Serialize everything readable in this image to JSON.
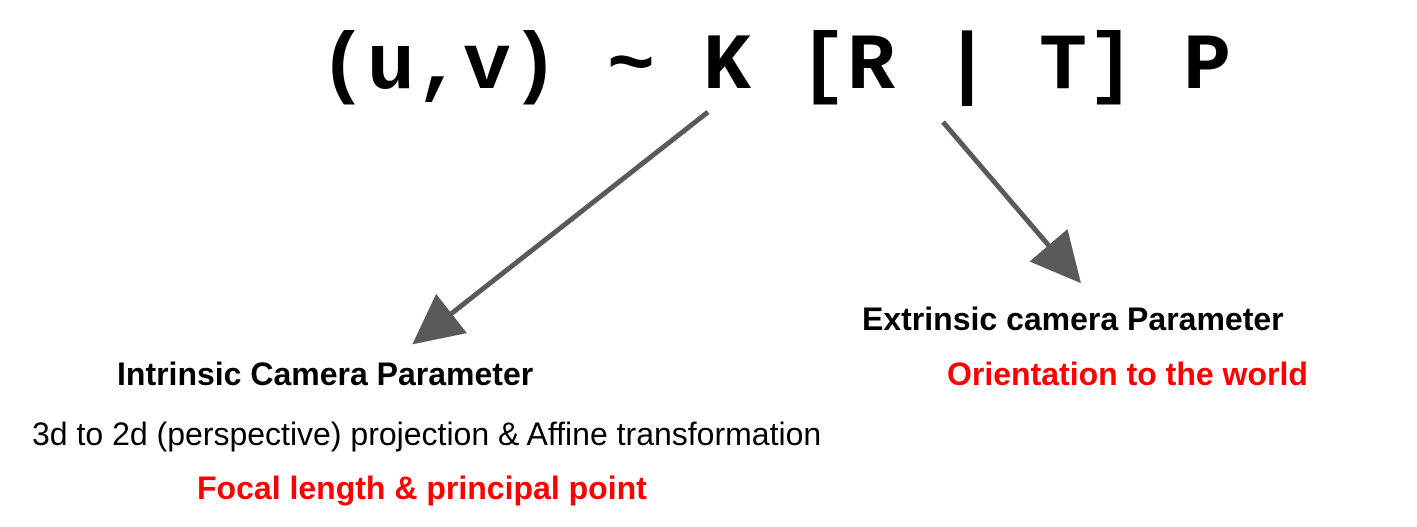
{
  "equation": "(u,v) ~ K [R | T] P",
  "intrinsic": {
    "title": "Intrinsic Camera Parameter",
    "description": "3d to 2d (perspective) projection & Affine transformation",
    "detail": "Focal length & principal point"
  },
  "extrinsic": {
    "title": "Extrinsic camera Parameter",
    "detail": "Orientation to the world"
  },
  "colors": {
    "accent": "#ff0000",
    "arrow": "#595959",
    "text": "#000000"
  }
}
